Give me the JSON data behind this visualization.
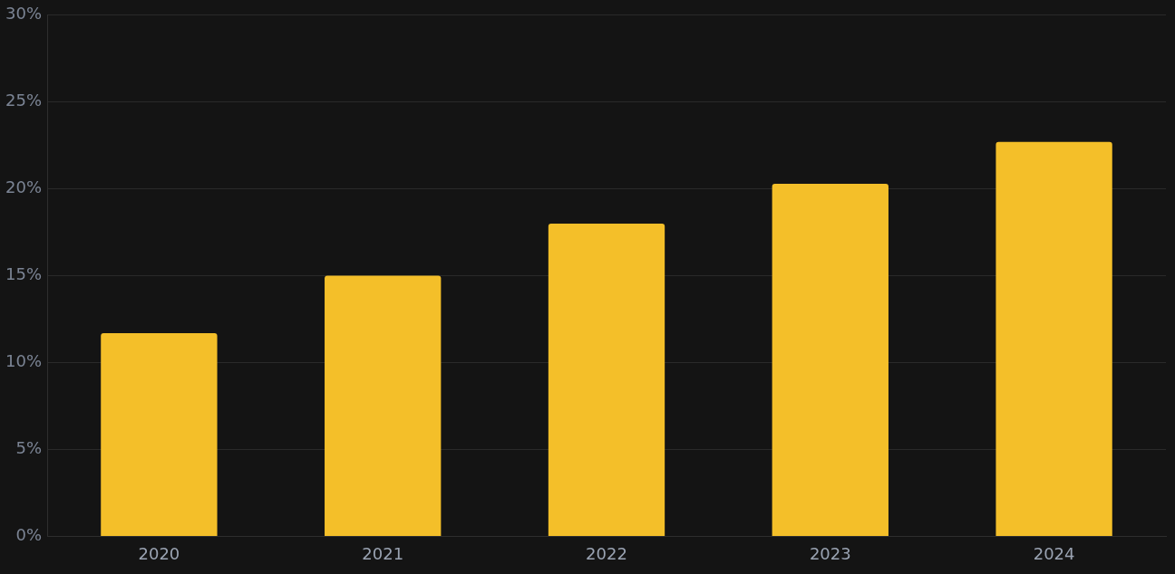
{
  "chart_data": {
    "type": "bar",
    "categories": [
      "2020",
      "2021",
      "2022",
      "2023",
      "2024"
    ],
    "values": [
      11.7,
      15.0,
      18.0,
      20.3,
      22.7
    ],
    "color": "#f4bf29",
    "ylim": [
      0,
      30
    ],
    "yticks": [
      {
        "value": 0,
        "label": "0%"
      },
      {
        "value": 5,
        "label": "5%"
      },
      {
        "value": 10,
        "label": "10%"
      },
      {
        "value": 15,
        "label": "15%"
      },
      {
        "value": 20,
        "label": "20%"
      },
      {
        "value": 25,
        "label": "25%"
      },
      {
        "value": 30,
        "label": "30%"
      }
    ],
    "grid": "y",
    "legend": false
  }
}
